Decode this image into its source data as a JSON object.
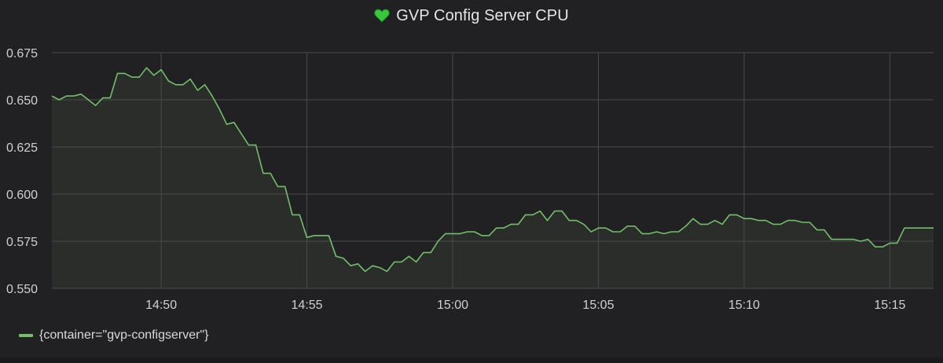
{
  "panel": {
    "title": "GVP Config Server CPU",
    "status_icon": "heart-icon",
    "status_color": "#37c83c"
  },
  "colors": {
    "background": "#212124",
    "grid": "#4a4a4e",
    "series": "#73bf69",
    "fill": "#2b2f2a"
  },
  "chart_data": {
    "type": "area",
    "title": "GVP Config Server CPU",
    "xlabel": "",
    "ylabel": "",
    "ylim": [
      0.55,
      0.675
    ],
    "xlim": [
      "14:46:15",
      "15:16:30"
    ],
    "y_ticks": [
      "0.550",
      "0.575",
      "0.600",
      "0.625",
      "0.650",
      "0.675"
    ],
    "x_ticks": [
      "14:50",
      "14:55",
      "15:00",
      "15:05",
      "15:10",
      "15:15"
    ],
    "grid": true,
    "legend_position": "bottom-left",
    "series": [
      {
        "name": "{container=\"gvp-configserver\"}",
        "color": "#73bf69",
        "points": [
          [
            "14:46:15",
            0.652
          ],
          [
            "14:46:30",
            0.65
          ],
          [
            "14:46:45",
            0.652
          ],
          [
            "14:47:00",
            0.652
          ],
          [
            "14:47:15",
            0.653
          ],
          [
            "14:47:30",
            0.65
          ],
          [
            "14:47:45",
            0.647
          ],
          [
            "14:48:00",
            0.651
          ],
          [
            "14:48:15",
            0.651
          ],
          [
            "14:48:30",
            0.664
          ],
          [
            "14:48:45",
            0.664
          ],
          [
            "14:49:00",
            0.662
          ],
          [
            "14:49:15",
            0.662
          ],
          [
            "14:49:30",
            0.667
          ],
          [
            "14:49:45",
            0.663
          ],
          [
            "14:50:00",
            0.666
          ],
          [
            "14:50:15",
            0.66
          ],
          [
            "14:50:30",
            0.658
          ],
          [
            "14:50:45",
            0.658
          ],
          [
            "14:51:00",
            0.661
          ],
          [
            "14:51:15",
            0.655
          ],
          [
            "14:51:30",
            0.658
          ],
          [
            "14:51:45",
            0.652
          ],
          [
            "14:52:00",
            0.645
          ],
          [
            "14:52:15",
            0.637
          ],
          [
            "14:52:30",
            0.638
          ],
          [
            "14:52:45",
            0.632
          ],
          [
            "14:53:00",
            0.626
          ],
          [
            "14:53:15",
            0.626
          ],
          [
            "14:53:30",
            0.611
          ],
          [
            "14:53:45",
            0.611
          ],
          [
            "14:54:00",
            0.604
          ],
          [
            "14:54:15",
            0.604
          ],
          [
            "14:54:30",
            0.589
          ],
          [
            "14:54:45",
            0.589
          ],
          [
            "14:55:00",
            0.577
          ],
          [
            "14:55:15",
            0.578
          ],
          [
            "14:55:30",
            0.578
          ],
          [
            "14:55:45",
            0.578
          ],
          [
            "14:56:00",
            0.567
          ],
          [
            "14:56:15",
            0.566
          ],
          [
            "14:56:30",
            0.562
          ],
          [
            "14:56:45",
            0.563
          ],
          [
            "14:57:00",
            0.559
          ],
          [
            "14:57:15",
            0.562
          ],
          [
            "14:57:30",
            0.561
          ],
          [
            "14:57:45",
            0.559
          ],
          [
            "14:58:00",
            0.564
          ],
          [
            "14:58:15",
            0.564
          ],
          [
            "14:58:30",
            0.567
          ],
          [
            "14:58:45",
            0.564
          ],
          [
            "14:59:00",
            0.569
          ],
          [
            "14:59:15",
            0.569
          ],
          [
            "14:59:30",
            0.575
          ],
          [
            "14:59:45",
            0.579
          ],
          [
            "15:00:00",
            0.579
          ],
          [
            "15:00:15",
            0.579
          ],
          [
            "15:00:30",
            0.58
          ],
          [
            "15:00:45",
            0.58
          ],
          [
            "15:01:00",
            0.578
          ],
          [
            "15:01:15",
            0.578
          ],
          [
            "15:01:30",
            0.582
          ],
          [
            "15:01:45",
            0.582
          ],
          [
            "15:02:00",
            0.584
          ],
          [
            "15:02:15",
            0.584
          ],
          [
            "15:02:30",
            0.589
          ],
          [
            "15:02:45",
            0.589
          ],
          [
            "15:03:00",
            0.591
          ],
          [
            "15:03:15",
            0.586
          ],
          [
            "15:03:30",
            0.591
          ],
          [
            "15:03:45",
            0.591
          ],
          [
            "15:04:00",
            0.586
          ],
          [
            "15:04:15",
            0.586
          ],
          [
            "15:04:30",
            0.584
          ],
          [
            "15:04:45",
            0.58
          ],
          [
            "15:05:00",
            0.582
          ],
          [
            "15:05:15",
            0.582
          ],
          [
            "15:05:30",
            0.58
          ],
          [
            "15:05:45",
            0.58
          ],
          [
            "15:06:00",
            0.583
          ],
          [
            "15:06:15",
            0.583
          ],
          [
            "15:06:30",
            0.579
          ],
          [
            "15:06:45",
            0.579
          ],
          [
            "15:07:00",
            0.58
          ],
          [
            "15:07:15",
            0.579
          ],
          [
            "15:07:30",
            0.58
          ],
          [
            "15:07:45",
            0.58
          ],
          [
            "15:08:00",
            0.583
          ],
          [
            "15:08:15",
            0.587
          ],
          [
            "15:08:30",
            0.584
          ],
          [
            "15:08:45",
            0.584
          ],
          [
            "15:09:00",
            0.586
          ],
          [
            "15:09:15",
            0.584
          ],
          [
            "15:09:30",
            0.589
          ],
          [
            "15:09:45",
            0.589
          ],
          [
            "15:10:00",
            0.587
          ],
          [
            "15:10:15",
            0.587
          ],
          [
            "15:10:30",
            0.586
          ],
          [
            "15:10:45",
            0.586
          ],
          [
            "15:11:00",
            0.584
          ],
          [
            "15:11:15",
            0.584
          ],
          [
            "15:11:30",
            0.586
          ],
          [
            "15:11:45",
            0.586
          ],
          [
            "15:12:00",
            0.585
          ],
          [
            "15:12:15",
            0.585
          ],
          [
            "15:12:30",
            0.581
          ],
          [
            "15:12:45",
            0.581
          ],
          [
            "15:13:00",
            0.576
          ],
          [
            "15:13:15",
            0.576
          ],
          [
            "15:13:30",
            0.576
          ],
          [
            "15:13:45",
            0.576
          ],
          [
            "15:14:00",
            0.575
          ],
          [
            "15:14:15",
            0.576
          ],
          [
            "15:14:30",
            0.572
          ],
          [
            "15:14:45",
            0.572
          ],
          [
            "15:15:00",
            0.574
          ],
          [
            "15:15:15",
            0.574
          ],
          [
            "15:15:30",
            0.582
          ],
          [
            "15:15:45",
            0.582
          ],
          [
            "15:16:00",
            0.582
          ],
          [
            "15:16:30",
            0.582
          ]
        ]
      }
    ]
  }
}
